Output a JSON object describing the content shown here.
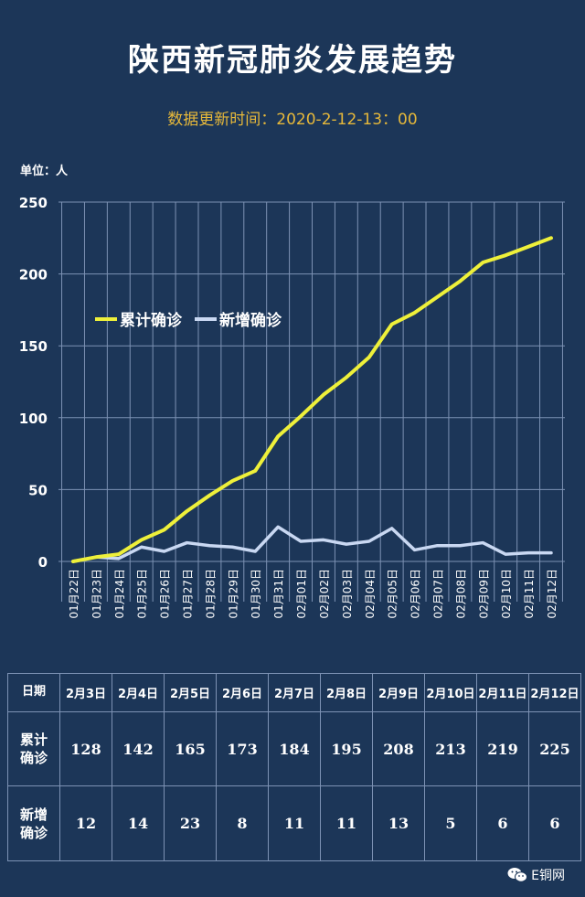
{
  "title": "陕西新冠肺炎发展趋势",
  "subtitle": "数据更新时间：2020-2-12-13：00",
  "unit_label": "单位：人",
  "colors": {
    "background": "#1c3658",
    "cumulative": "#eef03a",
    "new": "#c9d8f2",
    "grid": "#7d92b4",
    "subtitle": "#e6b83a"
  },
  "chart_data": {
    "type": "line",
    "categories": [
      "01月22日",
      "01月23日",
      "01月24日",
      "01月25日",
      "01月26日",
      "01月27日",
      "01月28日",
      "01月29日",
      "01月30日",
      "01月31日",
      "02月01日",
      "02月02日",
      "02月03日",
      "02月04日",
      "02月05日",
      "02月06日",
      "02月07日",
      "02月08日",
      "02月09日",
      "02月10日",
      "02月11日",
      "02月12日"
    ],
    "series": [
      {
        "name": "累计确诊",
        "color": "#eef03a",
        "values": [
          0,
          3,
          5,
          15,
          22,
          35,
          46,
          56,
          63,
          87,
          101,
          116,
          128,
          142,
          165,
          173,
          184,
          195,
          208,
          213,
          219,
          225
        ]
      },
      {
        "name": "新增确诊",
        "color": "#c9d8f2",
        "values": [
          0,
          3,
          2,
          10,
          7,
          13,
          11,
          10,
          7,
          24,
          14,
          15,
          12,
          14,
          23,
          8,
          11,
          11,
          13,
          5,
          6,
          6
        ]
      }
    ],
    "ylim": [
      0,
      250
    ],
    "yticks": [
      0,
      50,
      100,
      150,
      200,
      250
    ],
    "grid": true,
    "legend": "top-left"
  },
  "table": {
    "row_headers": [
      "日期",
      "累计确诊",
      "新增确诊"
    ],
    "dates": [
      "2月3日",
      "2月4日",
      "2月5日",
      "2月6日",
      "2月7日",
      "2月8日",
      "2月9日",
      "2月10日",
      "2月11日",
      "2月12日"
    ],
    "cumulative": [
      "128",
      "142",
      "165",
      "173",
      "184",
      "195",
      "208",
      "213",
      "219",
      "225"
    ],
    "new": [
      "12",
      "14",
      "23",
      "8",
      "11",
      "11",
      "13",
      "5",
      "6",
      "6"
    ]
  },
  "watermark": {
    "text": "E铜网",
    "icon": "wechat-icon"
  }
}
